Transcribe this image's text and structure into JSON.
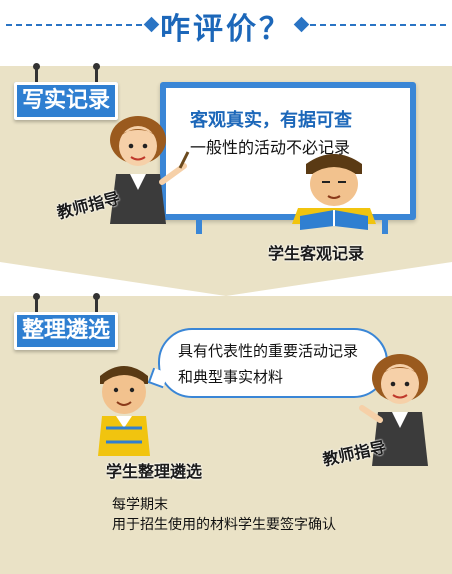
{
  "header": {
    "title": "咋评价？"
  },
  "section1": {
    "tag": "写实记录",
    "board": {
      "line1": "客观真实，有据可查",
      "line2": "一般性的活动不必记录"
    },
    "teacher_caption": "教师指导",
    "student_caption": "学生客观记录"
  },
  "section2": {
    "tag": "整理遴选",
    "bubble": {
      "line1": "具有代表性的重要活动记录",
      "line2": "和典型事实材料"
    },
    "student_caption": "学生整理遴选",
    "teacher_caption": "教师指导",
    "note": {
      "line1": "每学期末",
      "line2": "用于招生使用的材料学生要签字确认"
    }
  },
  "colors": {
    "accent_blue": "#2f7fd1",
    "panel_beige": "#eae2c6",
    "title_blue": "#1c67b9"
  },
  "icons": [
    "teacher-figure-icon",
    "student-reading-figure-icon",
    "student-figure-icon",
    "teacher-pointing-figure-icon",
    "pointer-stick-icon",
    "book-icon",
    "pushpin-icon"
  ]
}
